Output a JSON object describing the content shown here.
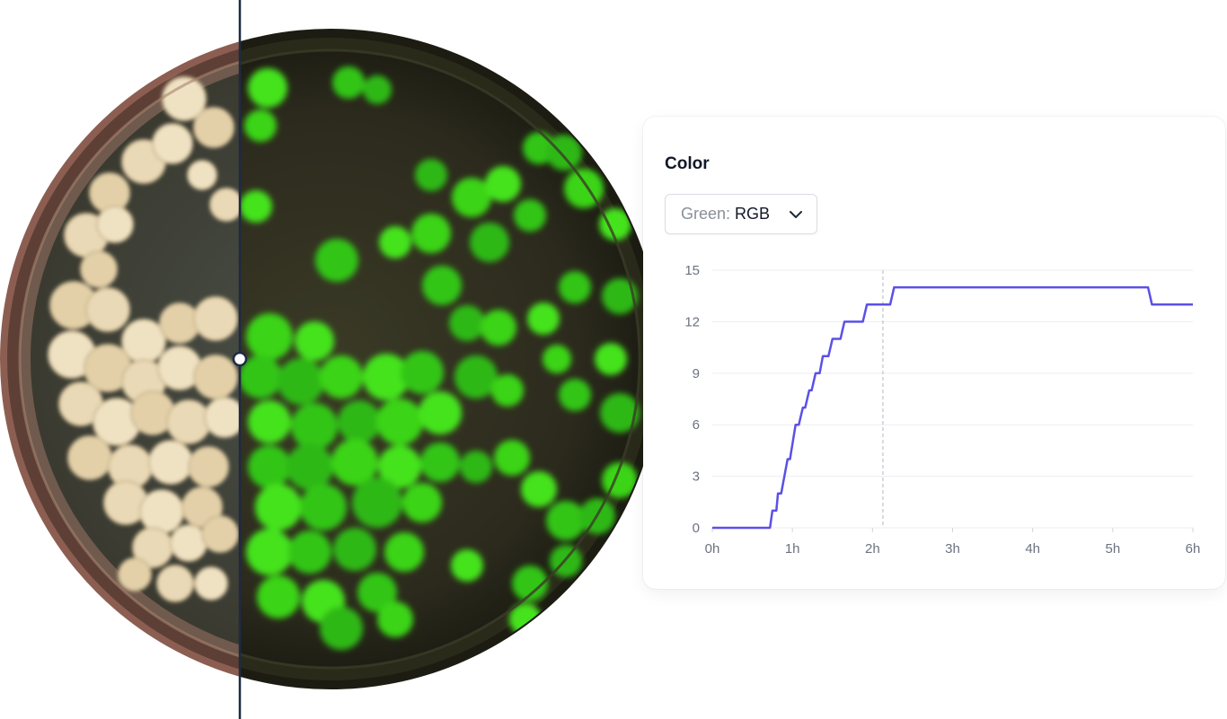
{
  "panel": {
    "title": "Color",
    "select": {
      "label": "Green:",
      "value": "RGB"
    }
  },
  "colors": {
    "series_line": "#5b50e6",
    "gridline": "#eceef1",
    "marker_line": "#c4c8ce",
    "divider": "#1f2a44"
  },
  "icons": {
    "select_chevron": "chevron-down-icon",
    "divider_handle": "slider-handle-icon"
  },
  "chart_data": {
    "type": "line",
    "xlabel": "",
    "ylabel": "",
    "xticks": [
      "0h",
      "1h",
      "2h",
      "3h",
      "4h",
      "5h",
      "6h"
    ],
    "yticks": [
      "0",
      "3",
      "6",
      "9",
      "12",
      "15"
    ],
    "xlim": [
      0,
      6
    ],
    "ylim": [
      0,
      15
    ],
    "grid": true,
    "current_time_marker": 2.13,
    "series": [
      {
        "points": [
          [
            0,
            0
          ],
          [
            0.72,
            0
          ],
          [
            0.75,
            1
          ],
          [
            0.8,
            1
          ],
          [
            0.82,
            2
          ],
          [
            0.86,
            2
          ],
          [
            0.94,
            4
          ],
          [
            0.97,
            4
          ],
          [
            1.04,
            6
          ],
          [
            1.08,
            6
          ],
          [
            1.13,
            7
          ],
          [
            1.16,
            7
          ],
          [
            1.21,
            8
          ],
          [
            1.24,
            8
          ],
          [
            1.29,
            9
          ],
          [
            1.34,
            9
          ],
          [
            1.38,
            10
          ],
          [
            1.45,
            10
          ],
          [
            1.5,
            11
          ],
          [
            1.6,
            11
          ],
          [
            1.65,
            12
          ],
          [
            1.88,
            12
          ],
          [
            1.93,
            13
          ],
          [
            2.22,
            13
          ],
          [
            2.27,
            14
          ],
          [
            5.44,
            14
          ],
          [
            5.49,
            13
          ],
          [
            6,
            13
          ]
        ]
      }
    ]
  }
}
